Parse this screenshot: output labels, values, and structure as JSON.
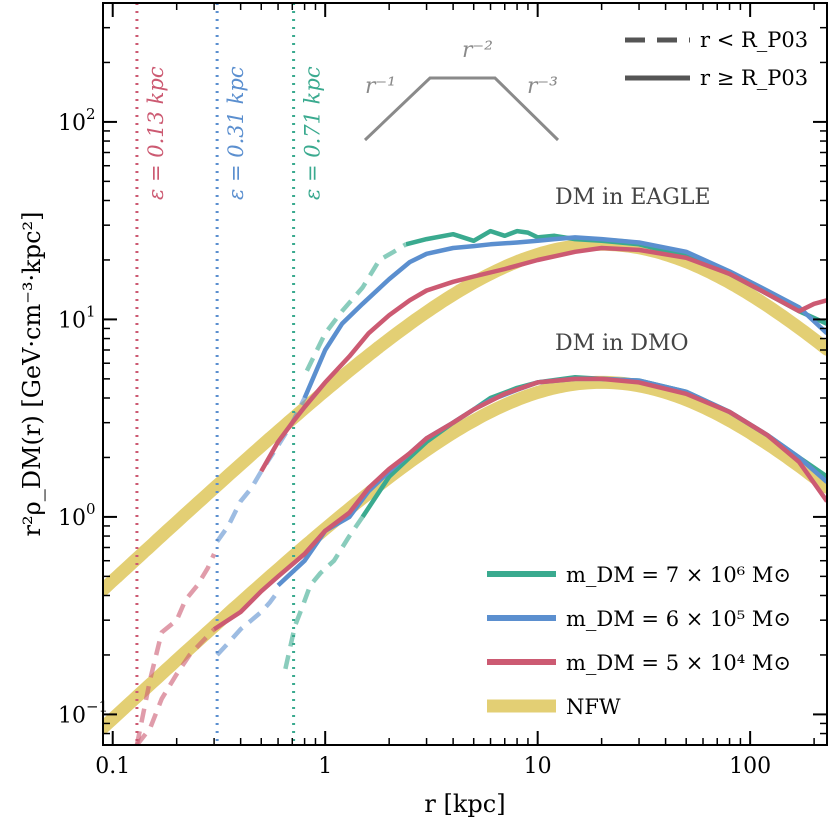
{
  "chart_data": {
    "type": "line",
    "xscale": "log",
    "yscale": "log",
    "xlim": [
      0.09,
      230
    ],
    "ylim": [
      0.07,
      400
    ],
    "xlabel": "r [kpc]",
    "ylabel": "r²ρ_DM(r) [GeV·cm⁻³·kpc²]",
    "x_ticks": [
      {
        "value": 0.1,
        "label": "0.1"
      },
      {
        "value": 1,
        "label": "1"
      },
      {
        "value": 10,
        "label": "10"
      },
      {
        "value": 100,
        "label": "100"
      }
    ],
    "y_ticks": [
      {
        "value": 0.1,
        "base": "10",
        "exp": "−1"
      },
      {
        "value": 1,
        "base": "10",
        "exp": "0"
      },
      {
        "value": 10,
        "base": "10",
        "exp": "1"
      },
      {
        "value": 100,
        "base": "10",
        "exp": "2"
      }
    ],
    "colors": {
      "green": "#3aaa8f",
      "blue": "#5b8fcf",
      "red": "#cc5a72",
      "nfw": "#e3cf74",
      "gray": "#8a8a8a"
    },
    "softening": [
      {
        "x": 0.13,
        "label": "ε = 0.13 kpc",
        "color": "#cc5a72"
      },
      {
        "x": 0.31,
        "label": "ε = 0.31 kpc",
        "color": "#5b8fcf"
      },
      {
        "x": 0.71,
        "label": "ε = 0.71 kpc",
        "color": "#3aaa8f"
      }
    ],
    "annotations": {
      "eagle": "DM in EAGLE",
      "dmo": "DM in DMO"
    },
    "slope_sketch": {
      "left": "r⁻¹",
      "mid": "r⁻²",
      "right": "r⁻³"
    },
    "legend_style": [
      {
        "style": "dashed",
        "label": "r < R_P03"
      },
      {
        "style": "solid",
        "label": "r ≥ R_P03"
      }
    ],
    "legend_mass": [
      {
        "label": "m_DM = 7 × 10⁶ M⊙",
        "color": "#3aaa8f"
      },
      {
        "label": "m_DM = 6 × 10⁵ M⊙",
        "color": "#5b8fcf"
      },
      {
        "label": "m_DM = 5 × 10⁴ M⊙",
        "color": "#cc5a72"
      },
      {
        "label": "NFW",
        "color": "#e3cf74"
      }
    ],
    "nfw": [
      {
        "name": "NFW EAGLE",
        "rs": 20,
        "peak": 24
      },
      {
        "name": "NFW DMO",
        "rs": 20,
        "peak": 4.8
      }
    ],
    "series": [
      {
        "name": "EAGLE 7e6 dashed",
        "color": "#3aaa8f",
        "style": "dashed",
        "x": [
          0.82,
          1.0,
          1.2,
          1.5,
          1.8,
          2.1,
          2.4
        ],
        "y": [
          5.5,
          8.5,
          11.0,
          14.5,
          20.0,
          22.0,
          24.0
        ]
      },
      {
        "name": "EAGLE 7e6 solid",
        "color": "#3aaa8f",
        "style": "solid",
        "x": [
          2.4,
          3.0,
          4.0,
          5.0,
          6.0,
          7.0,
          8.0,
          9.0,
          10.0,
          12.0,
          15.0,
          20.0,
          30.0,
          50.0,
          80.0,
          120.0,
          170.0,
          230.0
        ],
        "y": [
          24.0,
          25.5,
          27.0,
          25.0,
          28.0,
          26.5,
          28.0,
          27.5,
          26.0,
          26.5,
          25.5,
          25.0,
          24.0,
          21.0,
          17.0,
          13.5,
          11.0,
          9.5
        ]
      },
      {
        "name": "EAGLE 6e5 dashed",
        "color": "#5b8fcf",
        "style": "dashed",
        "x": [
          0.31,
          0.35,
          0.4,
          0.45,
          0.5,
          0.6,
          0.7,
          0.8
        ],
        "y": [
          0.75,
          0.9,
          1.2,
          1.4,
          1.7,
          2.3,
          3.0,
          4.0
        ]
      },
      {
        "name": "EAGLE 6e5 solid",
        "color": "#5b8fcf",
        "style": "solid",
        "x": [
          0.8,
          1.0,
          1.2,
          1.5,
          2.0,
          2.5,
          3.0,
          4.0,
          5.0,
          6.0,
          8.0,
          10.0,
          12.0,
          15.0,
          20.0,
          30.0,
          50.0,
          80.0,
          120.0,
          170.0,
          230.0
        ],
        "y": [
          4.0,
          7.0,
          9.5,
          12.0,
          16.0,
          19.5,
          21.5,
          23.0,
          23.5,
          24.0,
          24.5,
          25.0,
          25.5,
          26.0,
          25.5,
          24.5,
          22.0,
          17.5,
          14.0,
          11.5,
          8.5
        ]
      },
      {
        "name": "EAGLE 5e4 dashed",
        "color": "#cc5a72",
        "style": "dashed",
        "x": [
          0.13,
          0.15,
          0.17,
          0.2,
          0.22,
          0.25,
          0.28,
          0.3
        ],
        "y": [
          0.07,
          0.15,
          0.26,
          0.3,
          0.38,
          0.45,
          0.55,
          0.65
        ]
      },
      {
        "name": "EAGLE 5e4 solid",
        "color": "#cc5a72",
        "style": "solid",
        "x": [
          0.5,
          0.6,
          0.7,
          0.8,
          1.0,
          1.3,
          1.6,
          2.0,
          2.5,
          3.0,
          4.0,
          5.0,
          7.0,
          10.0,
          15.0,
          20.0,
          30.0,
          50.0,
          80.0,
          120.0,
          170.0,
          200.0,
          230.0
        ],
        "y": [
          1.7,
          2.4,
          3.0,
          3.6,
          4.8,
          6.5,
          8.5,
          10.5,
          12.5,
          14.0,
          15.5,
          16.5,
          18.0,
          20.0,
          22.0,
          23.0,
          22.5,
          20.5,
          17.0,
          13.5,
          11.0,
          12.0,
          12.5
        ]
      },
      {
        "name": "DMO 7e6 dashed",
        "color": "#3aaa8f",
        "style": "dashed",
        "x": [
          0.65,
          0.72,
          0.78,
          0.85,
          0.95,
          1.1,
          1.3,
          1.5
        ],
        "y": [
          0.17,
          0.28,
          0.35,
          0.45,
          0.52,
          0.6,
          0.8,
          1.0
        ]
      },
      {
        "name": "DMO 7e6 solid",
        "color": "#3aaa8f",
        "style": "solid",
        "x": [
          1.5,
          2.0,
          2.5,
          3.0,
          4.0,
          5.0,
          6.0,
          8.0,
          10.0,
          15.0,
          20.0,
          30.0,
          50.0,
          80.0,
          120.0,
          170.0,
          230.0
        ],
        "y": [
          1.0,
          1.6,
          2.0,
          2.4,
          3.0,
          3.5,
          4.0,
          4.5,
          4.8,
          5.1,
          5.0,
          4.9,
          4.3,
          3.4,
          2.6,
          2.0,
          1.6
        ]
      },
      {
        "name": "DMO 6e5 dashed",
        "color": "#5b8fcf",
        "style": "dashed",
        "x": [
          0.31,
          0.35,
          0.4,
          0.45,
          0.5,
          0.55,
          0.6
        ],
        "y": [
          0.2,
          0.23,
          0.27,
          0.3,
          0.33,
          0.37,
          0.42
        ]
      },
      {
        "name": "DMO 6e5 solid",
        "color": "#5b8fcf",
        "style": "solid",
        "x": [
          0.6,
          0.8,
          1.0,
          1.3,
          1.6,
          2.0,
          2.5,
          3.0,
          4.0,
          5.0,
          6.0,
          8.0,
          10.0,
          15.0,
          20.0,
          30.0,
          50.0,
          80.0,
          120.0,
          170.0,
          230.0
        ],
        "y": [
          0.45,
          0.6,
          0.85,
          1.0,
          1.35,
          1.7,
          2.1,
          2.5,
          3.0,
          3.5,
          3.9,
          4.4,
          4.8,
          5.0,
          5.0,
          4.9,
          4.3,
          3.4,
          2.6,
          2.0,
          1.5
        ]
      },
      {
        "name": "DMO 5e4 dashed",
        "color": "#cc5a72",
        "style": "dashed",
        "x": [
          0.13,
          0.15,
          0.17,
          0.2,
          0.23,
          0.26,
          0.3
        ],
        "y": [
          0.07,
          0.085,
          0.12,
          0.16,
          0.2,
          0.23,
          0.27
        ]
      },
      {
        "name": "DMO 5e4 solid",
        "color": "#cc5a72",
        "style": "solid",
        "x": [
          0.3,
          0.4,
          0.5,
          0.6,
          0.8,
          1.0,
          1.3,
          1.6,
          2.0,
          2.5,
          3.0,
          4.0,
          5.0,
          7.0,
          10.0,
          15.0,
          20.0,
          30.0,
          50.0,
          80.0,
          120.0,
          170.0,
          230.0
        ],
        "y": [
          0.27,
          0.33,
          0.42,
          0.5,
          0.65,
          0.85,
          1.05,
          1.4,
          1.75,
          2.1,
          2.5,
          3.0,
          3.5,
          4.2,
          4.8,
          5.0,
          5.0,
          4.8,
          4.2,
          3.4,
          2.6,
          1.9,
          1.2
        ]
      }
    ]
  }
}
